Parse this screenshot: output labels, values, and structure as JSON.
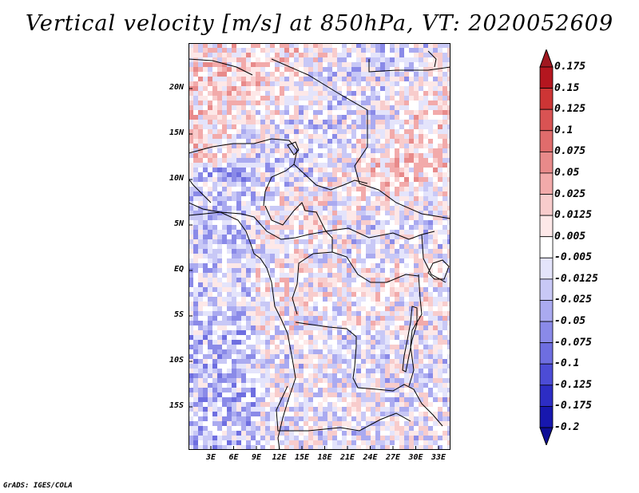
{
  "title": "Vertical velocity [m/s] at 850hPa, VT: 2020052609",
  "footer": "GrADS: IGES/COLA",
  "map": {
    "lat_labels": [
      "20N",
      "15N",
      "10N",
      "5N",
      "EQ",
      "5S",
      "10S",
      "15S"
    ],
    "lon_labels": [
      "3E",
      "6E",
      "9E",
      "12E",
      "15E",
      "18E",
      "21E",
      "24E",
      "27E",
      "30E",
      "33E"
    ],
    "lat_range": [
      -20,
      25
    ],
    "lon_range": [
      0,
      35
    ],
    "variable": "vertical velocity",
    "units": "m/s",
    "level": "850hPa"
  },
  "colorbar": {
    "labels": [
      "0.175",
      "0.15",
      "0.125",
      "0.1",
      "0.075",
      "0.05",
      "0.025",
      "0.0125",
      "0.005",
      "-0.005",
      "-0.0125",
      "-0.025",
      "-0.05",
      "-0.075",
      "-0.1",
      "-0.125",
      "-0.175",
      "-0.2"
    ],
    "colors": [
      "#8b0e15",
      "#b4161f",
      "#cd3535",
      "#d95353",
      "#e06c6c",
      "#e88a8a",
      "#f2aaaa",
      "#f8cccc",
      "#fde8e8",
      "#ffffff",
      "#e4e4fb",
      "#c8c8f6",
      "#aaaaf0",
      "#8a8ae8",
      "#6e6ee0",
      "#4c4cd6",
      "#2d2dc4",
      "#1717ae",
      "#08088f"
    ],
    "top_color": "#a01820",
    "bottom_color": "#0e0e96"
  }
}
